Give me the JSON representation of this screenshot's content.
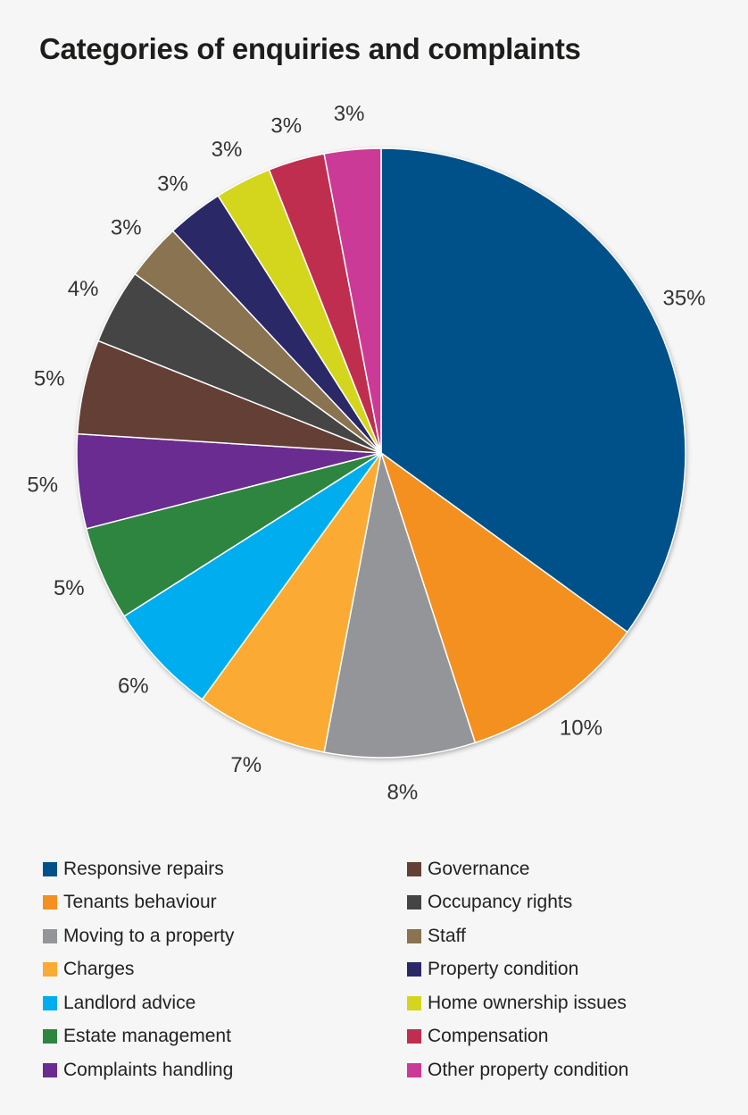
{
  "chart_data": {
    "type": "pie",
    "title": "Categories of enquiries and complaints",
    "slices": [
      {
        "label": "Responsive repairs",
        "value": 35,
        "display": "35%",
        "color": "#00518a"
      },
      {
        "label": "Tenants behaviour",
        "value": 10,
        "display": "10%",
        "color": "#f39020"
      },
      {
        "label": "Moving to a property",
        "value": 8,
        "display": "8%",
        "color": "#939598"
      },
      {
        "label": "Charges",
        "value": 7,
        "display": "7%",
        "color": "#fbaa33"
      },
      {
        "label": "Landlord advice",
        "value": 6,
        "display": "6%",
        "color": "#00aeef"
      },
      {
        "label": "Estate management",
        "value": 5,
        "display": "5%",
        "color": "#2e8540"
      },
      {
        "label": "Complaints handling",
        "value": 5,
        "display": "5%",
        "color": "#6a2c91"
      },
      {
        "label": "Governance",
        "value": 5,
        "display": "5%",
        "color": "#633f36"
      },
      {
        "label": "Occupancy rights",
        "value": 4,
        "display": "4%",
        "color": "#454545"
      },
      {
        "label": "Staff",
        "value": 3,
        "display": "3%",
        "color": "#8a7350"
      },
      {
        "label": "Property condition",
        "value": 3,
        "display": "3%",
        "color": "#2b2868"
      },
      {
        "label": "Home ownership issues",
        "value": 3,
        "display": "3%",
        "color": "#d4d61e"
      },
      {
        "label": "Compensation",
        "value": 3,
        "display": "3%",
        "color": "#bf2e4f"
      },
      {
        "label": "Other property condition",
        "value": 3,
        "display": "3%",
        "color": "#cc3a97"
      }
    ],
    "legend_placement": "bottom, two columns"
  }
}
